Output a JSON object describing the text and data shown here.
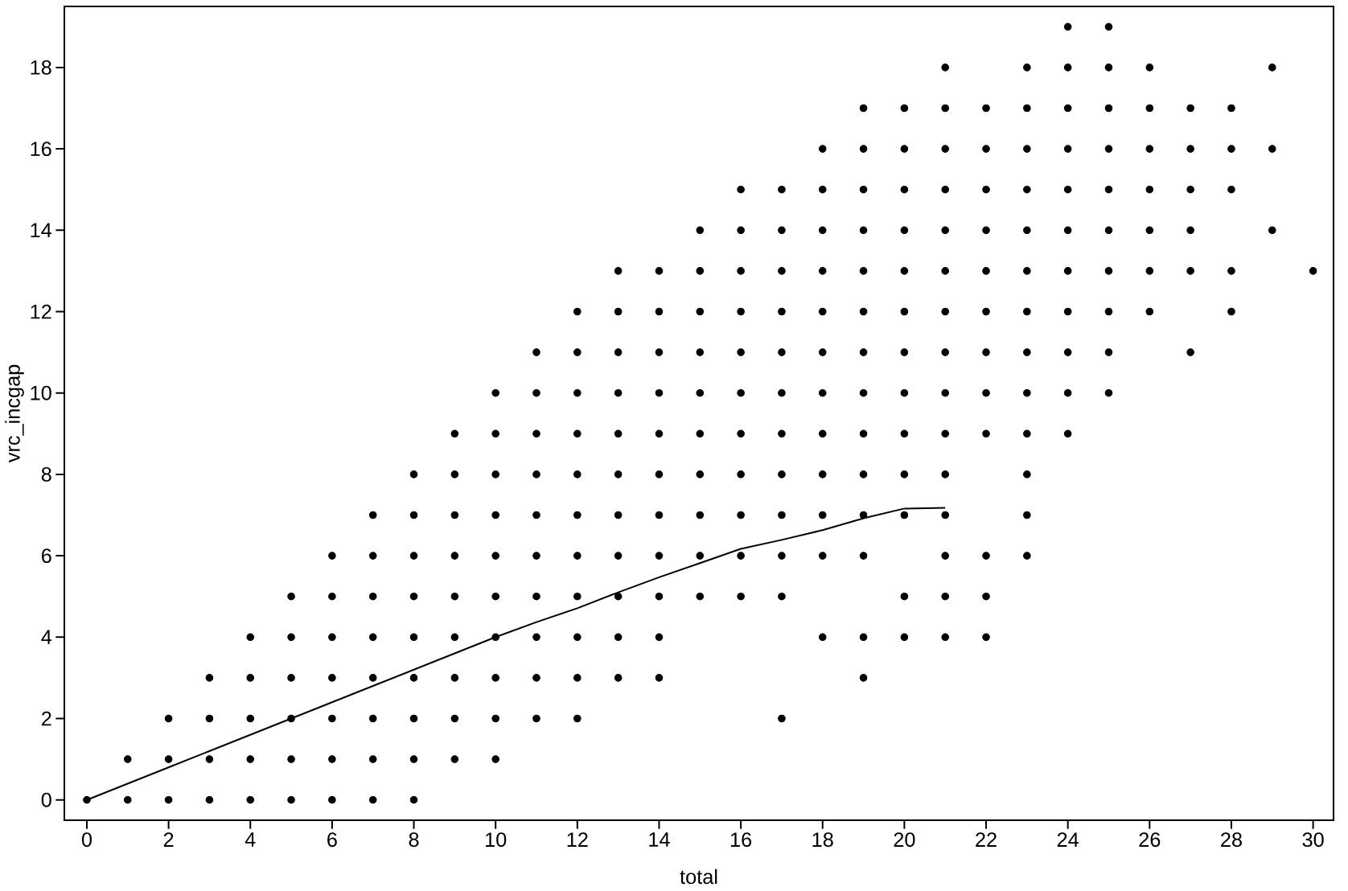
{
  "chart_data": {
    "type": "scatter",
    "xlabel": "total",
    "ylabel": "vrc_incgap",
    "xlim": [
      -0.55,
      30.5
    ],
    "ylim": [
      -0.5,
      19.5
    ],
    "xticks": [
      0,
      2,
      4,
      6,
      8,
      10,
      12,
      14,
      16,
      18,
      20,
      22,
      24,
      26,
      28,
      30
    ],
    "yticks": [
      0,
      2,
      4,
      6,
      8,
      10,
      12,
      14,
      16,
      18
    ],
    "marker": "circle",
    "series": [
      {
        "color": "#000000",
        "x": [
          0,
          1,
          1,
          2,
          2,
          2,
          3,
          3,
          3,
          3,
          4,
          4,
          4,
          4,
          4,
          5,
          5,
          5,
          5,
          5,
          5,
          6,
          6,
          6,
          6,
          6,
          6,
          6,
          7,
          7,
          7,
          7,
          7,
          7,
          7,
          7,
          8,
          8,
          8,
          8,
          8,
          8,
          8,
          8,
          8,
          9,
          9,
          9,
          9,
          9,
          9,
          9,
          9,
          9,
          10,
          10,
          10,
          10,
          10,
          10,
          10,
          10,
          10,
          10,
          11,
          11,
          11,
          11,
          11,
          11,
          11,
          11,
          11,
          11,
          12,
          12,
          12,
          12,
          12,
          12,
          12,
          12,
          12,
          12,
          12,
          13,
          13,
          13,
          13,
          13,
          13,
          13,
          13,
          13,
          13,
          13,
          14,
          14,
          14,
          14,
          14,
          14,
          14,
          14,
          14,
          14,
          14,
          15,
          15,
          15,
          15,
          15,
          15,
          15,
          15,
          15,
          15,
          16,
          16,
          16,
          16,
          16,
          16,
          16,
          16,
          16,
          16,
          16,
          17,
          17,
          17,
          17,
          17,
          17,
          17,
          17,
          17,
          17,
          17,
          17,
          18,
          18,
          18,
          18,
          18,
          18,
          18,
          18,
          18,
          18,
          18,
          18,
          19,
          19,
          19,
          19,
          19,
          19,
          19,
          19,
          19,
          19,
          19,
          19,
          19,
          19,
          20,
          20,
          20,
          20,
          20,
          20,
          20,
          20,
          20,
          20,
          20,
          20,
          20,
          21,
          21,
          21,
          21,
          21,
          21,
          21,
          21,
          21,
          21,
          21,
          21,
          21,
          21,
          21,
          22,
          22,
          22,
          22,
          22,
          22,
          22,
          22,
          22,
          22,
          22,
          22,
          23,
          23,
          23,
          23,
          23,
          23,
          23,
          23,
          23,
          23,
          23,
          23,
          23,
          24,
          24,
          24,
          24,
          24,
          24,
          24,
          24,
          24,
          24,
          24,
          25,
          25,
          25,
          25,
          25,
          25,
          25,
          25,
          25,
          25,
          26,
          26,
          26,
          26,
          26,
          26,
          26,
          27,
          27,
          27,
          27,
          27,
          27,
          28,
          28,
          28,
          28,
          28,
          29,
          29,
          29,
          30
        ],
        "values": [
          0,
          0,
          1,
          0,
          1,
          2,
          0,
          1,
          2,
          3,
          0,
          1,
          2,
          3,
          4,
          0,
          1,
          2,
          3,
          4,
          5,
          0,
          1,
          2,
          3,
          4,
          5,
          6,
          0,
          1,
          2,
          3,
          4,
          5,
          6,
          7,
          0,
          1,
          2,
          3,
          4,
          5,
          6,
          7,
          8,
          1,
          2,
          3,
          4,
          5,
          6,
          7,
          8,
          9,
          1,
          2,
          3,
          4,
          5,
          6,
          7,
          8,
          9,
          10,
          2,
          3,
          4,
          5,
          6,
          7,
          8,
          9,
          10,
          11,
          2,
          3,
          4,
          5,
          6,
          7,
          8,
          9,
          10,
          11,
          12,
          3,
          4,
          5,
          6,
          7,
          8,
          9,
          10,
          11,
          12,
          13,
          3,
          4,
          5,
          6,
          7,
          8,
          9,
          10,
          11,
          12,
          13,
          5,
          6,
          7,
          8,
          9,
          10,
          11,
          12,
          13,
          14,
          5,
          6,
          7,
          8,
          9,
          10,
          11,
          12,
          13,
          14,
          15,
          2,
          5,
          6,
          7,
          8,
          9,
          10,
          11,
          12,
          13,
          14,
          15,
          4,
          6,
          7,
          8,
          9,
          10,
          11,
          12,
          13,
          14,
          15,
          16,
          3,
          4,
          6,
          7,
          8,
          9,
          10,
          11,
          12,
          13,
          14,
          15,
          16,
          17,
          4,
          5,
          7,
          8,
          9,
          10,
          11,
          12,
          13,
          14,
          15,
          16,
          17,
          4,
          5,
          6,
          7,
          8,
          9,
          10,
          11,
          12,
          13,
          14,
          15,
          16,
          17,
          18,
          4,
          5,
          6,
          9,
          10,
          11,
          12,
          13,
          14,
          15,
          16,
          17,
          6,
          7,
          8,
          9,
          10,
          11,
          12,
          13,
          14,
          15,
          16,
          17,
          18,
          9,
          10,
          11,
          12,
          13,
          14,
          15,
          16,
          17,
          18,
          19,
          10,
          11,
          12,
          13,
          14,
          15,
          16,
          17,
          18,
          19,
          12,
          13,
          14,
          15,
          16,
          17,
          18,
          11,
          13,
          14,
          15,
          16,
          17,
          12,
          13,
          15,
          16,
          17,
          14,
          16,
          18,
          13
        ]
      },
      {
        "type": "line",
        "color": "#000000",
        "marker": "none",
        "x": [
          0,
          1,
          2,
          3,
          4,
          5,
          6,
          7,
          8,
          9,
          10,
          11,
          12,
          13,
          14,
          15,
          16,
          17,
          18,
          19,
          20,
          21
        ],
        "values": [
          0,
          0.4,
          0.8,
          1.2,
          1.6,
          2.0,
          2.4,
          2.8,
          3.2,
          3.6,
          4.0,
          4.37,
          4.71,
          5.1,
          5.47,
          5.82,
          6.17,
          6.39,
          6.63,
          6.92,
          7.16,
          7.18
        ]
      }
    ]
  }
}
